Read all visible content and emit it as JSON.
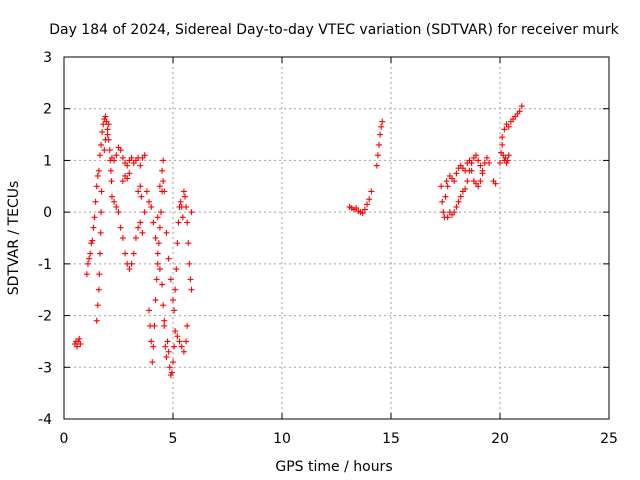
{
  "chart_data": {
    "type": "scatter",
    "title": "Day 184 of 2024, Sidereal Day-to-day VTEC variation (SDTVAR) for receiver murk",
    "xlabel": "GPS time / hours",
    "ylabel": "SDTVAR / TECUs",
    "xlim": [
      0,
      25
    ],
    "ylim": [
      -4,
      3
    ],
    "xticks": [
      0,
      5,
      10,
      15,
      20,
      25
    ],
    "yticks": [
      -4,
      -3,
      -2,
      -1,
      0,
      1,
      2,
      3
    ],
    "grid": true,
    "marker": "+",
    "series_color": "#ff0000",
    "series": [
      {
        "name": "SDTVAR",
        "points": [
          [
            0.5,
            -2.55
          ],
          [
            0.55,
            -2.5
          ],
          [
            0.6,
            -2.6
          ],
          [
            0.65,
            -2.5
          ],
          [
            0.7,
            -2.45
          ],
          [
            0.75,
            -2.55
          ],
          [
            1.05,
            -1.2
          ],
          [
            1.1,
            -1.0
          ],
          [
            1.15,
            -0.9
          ],
          [
            1.2,
            -0.8
          ],
          [
            1.25,
            -0.6
          ],
          [
            1.3,
            -0.55
          ],
          [
            1.35,
            -0.3
          ],
          [
            1.4,
            -0.1
          ],
          [
            1.45,
            0.2
          ],
          [
            1.5,
            0.5
          ],
          [
            1.55,
            0.7
          ],
          [
            1.6,
            0.8
          ],
          [
            1.65,
            1.1
          ],
          [
            1.5,
            -2.1
          ],
          [
            1.55,
            -1.8
          ],
          [
            1.6,
            -1.5
          ],
          [
            1.62,
            -1.2
          ],
          [
            1.65,
            -0.8
          ],
          [
            1.68,
            -0.4
          ],
          [
            1.7,
            0.0
          ],
          [
            1.72,
            0.4
          ],
          [
            1.7,
            1.3
          ],
          [
            1.75,
            1.55
          ],
          [
            1.8,
            1.7
          ],
          [
            1.85,
            1.8
          ],
          [
            1.9,
            1.85
          ],
          [
            1.95,
            1.75
          ],
          [
            2.0,
            1.6
          ],
          [
            2.05,
            1.4
          ],
          [
            2.1,
            1.2
          ],
          [
            2.12,
            1.0
          ],
          [
            2.15,
            0.8
          ],
          [
            2.18,
            0.6
          ],
          [
            1.85,
            1.2
          ],
          [
            1.9,
            1.4
          ],
          [
            2.0,
            1.5
          ],
          [
            2.05,
            1.7
          ],
          [
            2.2,
            1.05
          ],
          [
            2.3,
            1.0
          ],
          [
            2.4,
            1.1
          ],
          [
            2.5,
            1.25
          ],
          [
            2.6,
            1.2
          ],
          [
            2.7,
            1.05
          ],
          [
            2.8,
            0.95
          ],
          [
            2.9,
            0.9
          ],
          [
            3.0,
            1.0
          ],
          [
            3.1,
            1.05
          ],
          [
            3.2,
            0.95
          ],
          [
            3.3,
            1.0
          ],
          [
            3.4,
            1.05
          ],
          [
            3.5,
            0.9
          ],
          [
            3.6,
            1.05
          ],
          [
            3.7,
            1.1
          ],
          [
            2.2,
            0.3
          ],
          [
            2.3,
            0.2
          ],
          [
            2.4,
            0.1
          ],
          [
            2.5,
            0.0
          ],
          [
            2.6,
            -0.3
          ],
          [
            2.7,
            -0.5
          ],
          [
            2.8,
            -0.8
          ],
          [
            2.9,
            -1.0
          ],
          [
            3.0,
            -1.1
          ],
          [
            3.1,
            -1.0
          ],
          [
            3.2,
            -0.8
          ],
          [
            3.3,
            -0.5
          ],
          [
            3.4,
            -0.3
          ],
          [
            3.5,
            -0.2
          ],
          [
            3.6,
            -0.4
          ],
          [
            3.7,
            0.0
          ],
          [
            3.8,
            0.4
          ],
          [
            3.9,
            0.2
          ],
          [
            2.7,
            0.6
          ],
          [
            2.8,
            0.7
          ],
          [
            2.9,
            0.65
          ],
          [
            3.0,
            0.75
          ],
          [
            3.4,
            0.4
          ],
          [
            3.5,
            0.5
          ],
          [
            3.55,
            0.3
          ],
          [
            3.9,
            -1.9
          ],
          [
            3.95,
            -2.2
          ],
          [
            4.0,
            -2.5
          ],
          [
            4.05,
            -2.9
          ],
          [
            4.1,
            -2.6
          ],
          [
            4.15,
            -2.2
          ],
          [
            4.2,
            -1.7
          ],
          [
            4.25,
            -1.3
          ],
          [
            4.3,
            -1.0
          ],
          [
            4.35,
            -0.6
          ],
          [
            4.4,
            -0.3
          ],
          [
            4.45,
            0.0
          ],
          [
            4.5,
            0.4
          ],
          [
            4.55,
            0.6
          ],
          [
            4.6,
            0.4
          ],
          [
            4.0,
            0.1
          ],
          [
            4.1,
            -0.2
          ],
          [
            4.2,
            -0.5
          ],
          [
            4.3,
            -0.8
          ],
          [
            4.4,
            -1.1
          ],
          [
            4.5,
            -1.4
          ],
          [
            4.55,
            -1.8
          ],
          [
            4.6,
            -2.1
          ],
          [
            4.6,
            -2.2
          ],
          [
            4.65,
            -2.6
          ],
          [
            4.7,
            -2.8
          ],
          [
            4.75,
            -2.5
          ],
          [
            4.8,
            -2.7
          ],
          [
            4.85,
            -3.0
          ],
          [
            4.9,
            -3.15
          ],
          [
            4.95,
            -3.1
          ],
          [
            5.0,
            -2.9
          ],
          [
            5.05,
            -2.6
          ],
          [
            5.1,
            -2.3
          ],
          [
            5.05,
            -1.9
          ],
          [
            5.1,
            -1.5
          ],
          [
            5.15,
            -1.1
          ],
          [
            5.2,
            -0.6
          ],
          [
            5.25,
            -0.2
          ],
          [
            5.3,
            0.1
          ],
          [
            5.35,
            0.2
          ],
          [
            5.4,
            0.1
          ],
          [
            5.45,
            -0.1
          ],
          [
            5.2,
            -2.4
          ],
          [
            5.3,
            -2.5
          ],
          [
            5.4,
            -2.6
          ],
          [
            5.5,
            -2.7
          ],
          [
            5.6,
            -2.5
          ],
          [
            5.65,
            -2.2
          ],
          [
            5.5,
            0.4
          ],
          [
            5.55,
            0.3
          ],
          [
            5.6,
            0.1
          ],
          [
            5.65,
            -0.2
          ],
          [
            5.7,
            -0.6
          ],
          [
            5.75,
            -1.0
          ],
          [
            5.8,
            -1.3
          ],
          [
            5.85,
            -1.5
          ],
          [
            5.85,
            0.0
          ],
          [
            4.7,
            -0.4
          ],
          [
            4.8,
            -0.9
          ],
          [
            4.9,
            -1.3
          ],
          [
            5.0,
            -1.7
          ],
          [
            4.3,
            -0.1
          ],
          [
            4.4,
            0.5
          ],
          [
            4.5,
            0.8
          ],
          [
            4.55,
            1.0
          ],
          [
            13.1,
            0.1
          ],
          [
            13.2,
            0.08
          ],
          [
            13.3,
            0.05
          ],
          [
            13.4,
            0.08
          ],
          [
            13.5,
            0.02
          ],
          [
            13.6,
            0.0
          ],
          [
            13.7,
            -0.02
          ],
          [
            13.8,
            0.05
          ],
          [
            13.9,
            0.15
          ],
          [
            14.0,
            0.25
          ],
          [
            14.1,
            0.4
          ],
          [
            14.35,
            0.9
          ],
          [
            14.4,
            1.1
          ],
          [
            14.45,
            1.3
          ],
          [
            14.5,
            1.5
          ],
          [
            14.55,
            1.65
          ],
          [
            14.6,
            1.75
          ],
          [
            17.3,
            0.5
          ],
          [
            17.35,
            0.2
          ],
          [
            17.4,
            0.0
          ],
          [
            17.45,
            -0.1
          ],
          [
            17.5,
            0.3
          ],
          [
            17.55,
            0.6
          ],
          [
            17.6,
            0.5
          ],
          [
            17.7,
            0.7
          ],
          [
            17.6,
            -0.1
          ],
          [
            17.7,
            0.0
          ],
          [
            17.8,
            -0.05
          ],
          [
            17.9,
            0.0
          ],
          [
            18.0,
            0.1
          ],
          [
            18.1,
            0.2
          ],
          [
            18.2,
            0.3
          ],
          [
            18.3,
            0.4
          ],
          [
            18.4,
            0.45
          ],
          [
            18.5,
            0.6
          ],
          [
            18.6,
            0.8
          ],
          [
            18.7,
            0.95
          ],
          [
            18.8,
            1.05
          ],
          [
            18.9,
            1.1
          ],
          [
            19.0,
            1.0
          ],
          [
            19.1,
            0.9
          ],
          [
            19.2,
            0.75
          ],
          [
            17.8,
            0.65
          ],
          [
            17.9,
            0.6
          ],
          [
            18.0,
            0.75
          ],
          [
            18.1,
            0.85
          ],
          [
            18.2,
            0.9
          ],
          [
            18.3,
            0.85
          ],
          [
            18.4,
            0.8
          ],
          [
            18.5,
            0.95
          ],
          [
            18.6,
            1.0
          ],
          [
            18.7,
            0.8
          ],
          [
            18.8,
            0.6
          ],
          [
            18.9,
            0.55
          ],
          [
            19.0,
            0.5
          ],
          [
            19.1,
            0.6
          ],
          [
            19.2,
            0.8
          ],
          [
            19.3,
            0.95
          ],
          [
            19.4,
            1.05
          ],
          [
            19.5,
            0.95
          ],
          [
            19.7,
            0.6
          ],
          [
            19.8,
            0.55
          ],
          [
            20.0,
            0.95
          ],
          [
            20.05,
            1.15
          ],
          [
            20.1,
            1.3
          ],
          [
            20.15,
            1.1
          ],
          [
            20.2,
            1.0
          ],
          [
            20.25,
            1.05
          ],
          [
            20.3,
            0.95
          ],
          [
            20.35,
            1.0
          ],
          [
            20.4,
            1.1
          ],
          [
            20.1,
            1.45
          ],
          [
            20.2,
            1.6
          ],
          [
            20.3,
            1.7
          ],
          [
            20.4,
            1.65
          ],
          [
            20.5,
            1.75
          ],
          [
            20.6,
            1.8
          ],
          [
            20.7,
            1.85
          ],
          [
            20.8,
            1.9
          ],
          [
            20.9,
            1.95
          ],
          [
            21.0,
            2.05
          ]
        ]
      }
    ]
  }
}
